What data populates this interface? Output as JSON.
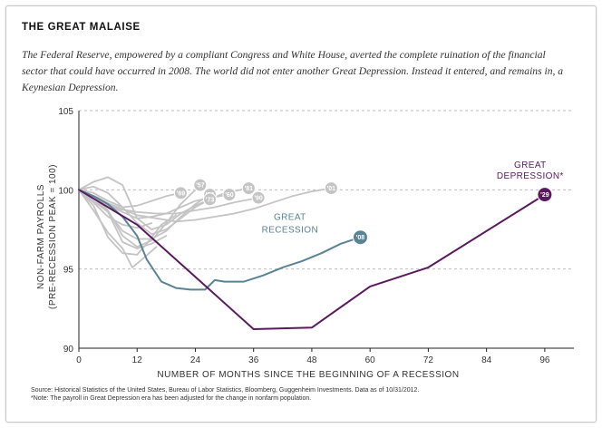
{
  "title": "THE GREAT MALAISE",
  "subtitle": "The Federal Reserve, empowered by a compliant Congress and White House, averted the complete ruination of the financial sector that could have occurred in 2008. The world did not enter another Great Depression. Instead it entered, and remains in, a Keynesian Depression.",
  "source": "Source: Historical Statistics of the United States, Bureau of Labor Statistics, Bloomberg, Guggenheim Investments. Data as of 10/31/2012.",
  "note": "*Note: The payroll in Great Depression era has been adjusted for the change in nonfarm population.",
  "chart_data": {
    "type": "line",
    "xlabel": "NUMBER OF MONTHS SINCE THE BEGINNING OF A RECESSION",
    "ylabel": [
      "NON-FARM PAYROLLS",
      "(PRE-RECESSION PEAK = 100)"
    ],
    "xlim": [
      0,
      102
    ],
    "ylim": [
      90,
      105
    ],
    "x_ticks": [
      0,
      12,
      24,
      36,
      48,
      60,
      72,
      84,
      96
    ],
    "y_ticks": [
      90,
      95,
      100,
      105
    ],
    "grid": "horizontal dashed",
    "colors": {
      "great_depression": "#5b1a5e",
      "great_recession": "#5a8394",
      "other": "#c4c4c4"
    },
    "annotations": {
      "great_recession": [
        "GREAT",
        "RECESSION"
      ],
      "great_depression": [
        "GREAT",
        "DEPRESSION*"
      ]
    },
    "series": [
      {
        "name": "'29",
        "role": "great_depression",
        "x": [
          0,
          12,
          24,
          36,
          48,
          60,
          72,
          96
        ],
        "values": [
          100,
          97.8,
          94.5,
          91.2,
          91.3,
          93.9,
          95.1,
          99.7
        ]
      },
      {
        "name": "'08",
        "role": "great_recession",
        "x": [
          0,
          3,
          6,
          9,
          12,
          14,
          17,
          20,
          23,
          26,
          28,
          30,
          34,
          38,
          42,
          46,
          50,
          54,
          58
        ],
        "values": [
          100,
          99.6,
          99.1,
          98.3,
          97.1,
          95.6,
          94.2,
          93.8,
          93.7,
          93.7,
          94.3,
          94.2,
          94.2,
          94.6,
          95.1,
          95.5,
          96.0,
          96.6,
          97.0
        ]
      },
      {
        "name": "'57",
        "role": "other",
        "x": [
          0,
          3,
          6,
          9,
          12,
          15,
          18,
          21,
          25
        ],
        "values": [
          100,
          99.6,
          98.7,
          97.1,
          96.4,
          96.8,
          97.9,
          99.1,
          100.3
        ]
      },
      {
        "name": "'53",
        "role": "other",
        "x": [
          0,
          3,
          6,
          9,
          12,
          15,
          18,
          21,
          24,
          27
        ],
        "values": [
          100,
          99.5,
          98.6,
          97.4,
          96.9,
          96.9,
          97.4,
          98.3,
          99.1,
          99.7
        ]
      },
      {
        "name": "'69",
        "role": "other",
        "x": [
          0,
          3,
          6,
          9,
          12,
          15,
          18,
          21
        ],
        "values": [
          100,
          99.8,
          99.3,
          98.9,
          99.0,
          99.3,
          99.6,
          99.8
        ]
      },
      {
        "name": "'73",
        "role": "other",
        "x": [
          0,
          3,
          6,
          9,
          12,
          15,
          18,
          21,
          24,
          27
        ],
        "values": [
          100,
          100.5,
          100.8,
          100.3,
          98.2,
          97.5,
          97.8,
          98.5,
          99.0,
          99.4
        ]
      },
      {
        "name": "'60",
        "role": "other",
        "x": [
          0,
          3,
          6,
          9,
          12,
          15,
          18,
          21,
          24,
          27,
          31
        ],
        "values": [
          100,
          99.6,
          99.0,
          98.6,
          98.2,
          98.3,
          98.5,
          98.9,
          99.3,
          99.5,
          99.7
        ]
      },
      {
        "name": "'81",
        "role": "other",
        "x": [
          0,
          3,
          6,
          9,
          12,
          15,
          18,
          21,
          24,
          27,
          30,
          35
        ],
        "values": [
          100,
          100.2,
          99.8,
          98.9,
          97.9,
          97.2,
          97.5,
          98.2,
          98.9,
          99.4,
          99.8,
          100.1
        ]
      },
      {
        "name": "'90",
        "role": "other",
        "x": [
          0,
          4,
          8,
          12,
          16,
          20,
          24,
          28,
          32,
          37
        ],
        "values": [
          100,
          99.5,
          98.8,
          98.6,
          98.5,
          98.5,
          98.7,
          98.9,
          99.2,
          99.5
        ]
      },
      {
        "name": "'01",
        "role": "other",
        "x": [
          0,
          4,
          8,
          12,
          16,
          20,
          24,
          28,
          32,
          36,
          40,
          44,
          48,
          52
        ],
        "values": [
          100,
          99.4,
          98.9,
          98.4,
          98.2,
          98.0,
          98.1,
          98.3,
          98.5,
          98.8,
          99.2,
          99.6,
          99.9,
          100.1
        ]
      },
      {
        "name": "",
        "role": "other",
        "x": [
          0,
          3,
          6,
          9,
          12,
          14,
          17,
          20
        ],
        "values": [
          100,
          99.0,
          97.0,
          96.0,
          95.9,
          96.6,
          97.8,
          98.4
        ]
      },
      {
        "name": "",
        "role": "other",
        "x": [
          0,
          3,
          6,
          9,
          11,
          13,
          16
        ],
        "values": [
          100,
          98.7,
          97.3,
          96.3,
          95.1,
          95.6,
          96.4
        ]
      },
      {
        "name": "",
        "role": "other",
        "x": [
          0,
          3,
          6,
          9,
          12,
          15
        ],
        "values": [
          100,
          99.2,
          98.3,
          97.8,
          97.6,
          97.9
        ]
      },
      {
        "name": "",
        "role": "other",
        "x": [
          0,
          3,
          6,
          9,
          12,
          15,
          18
        ],
        "values": [
          100,
          99.3,
          98.6,
          96.7,
          96.3,
          96.6,
          97.1
        ]
      }
    ]
  }
}
